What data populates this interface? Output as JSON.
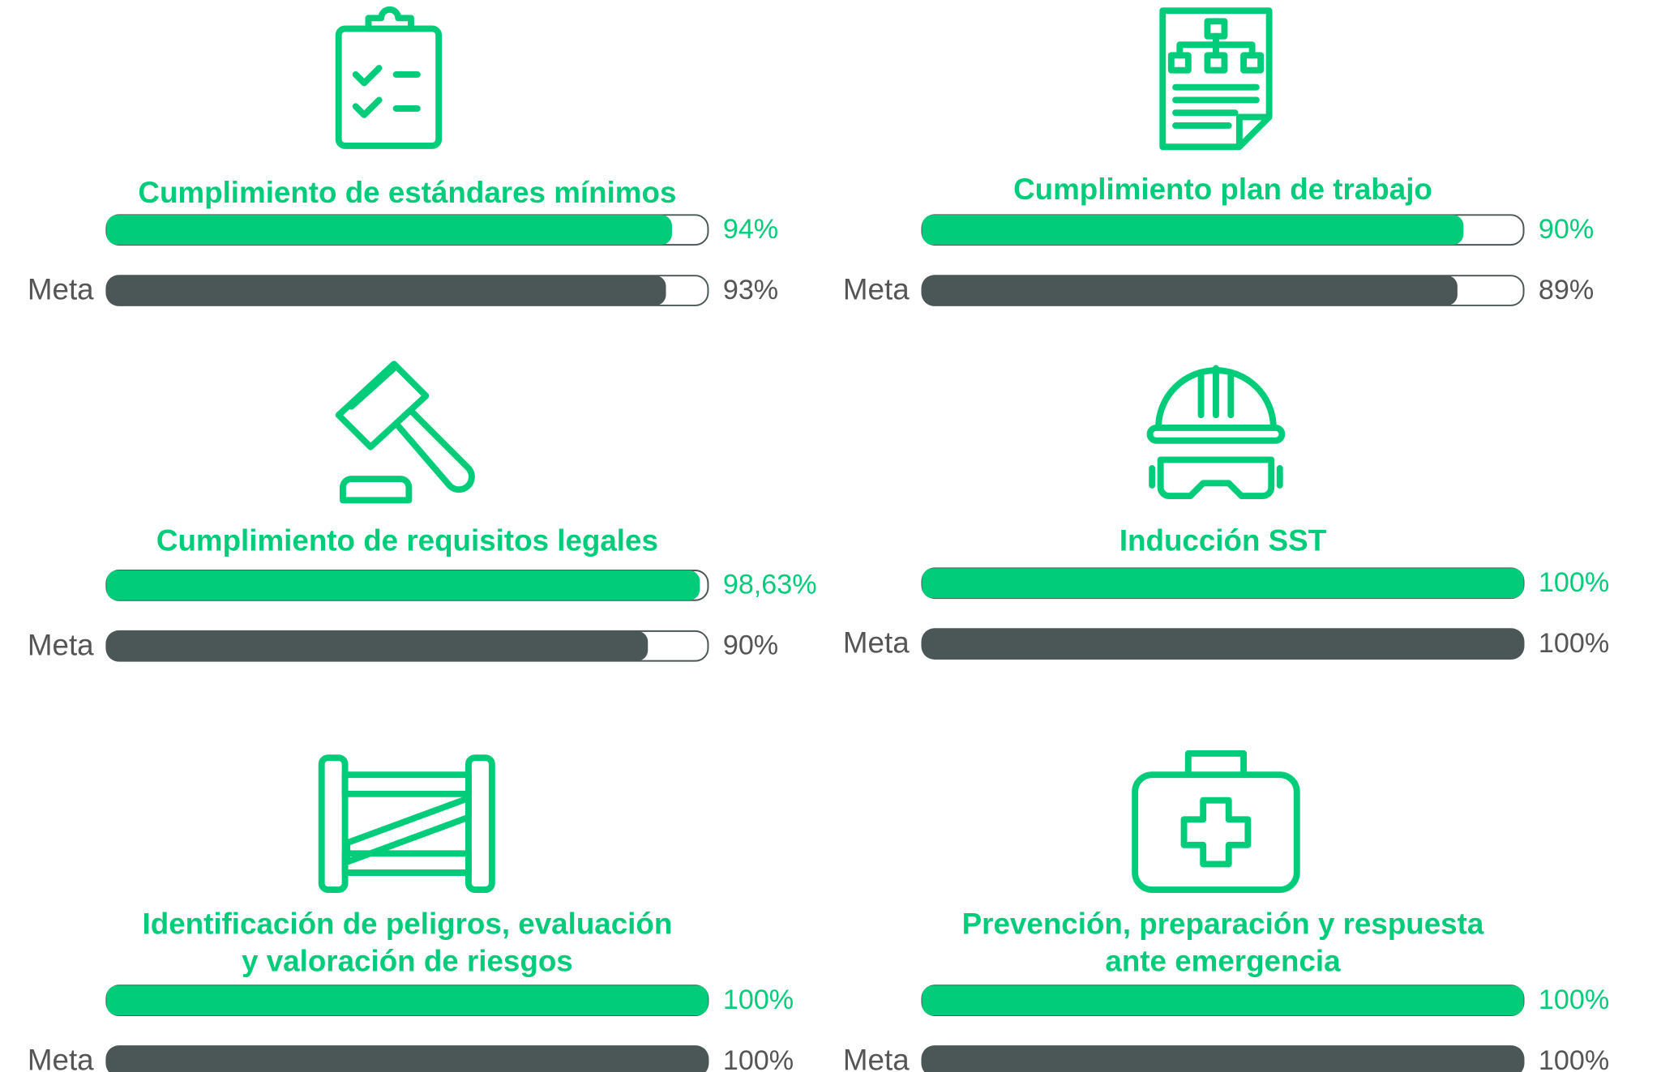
{
  "chart_data": [
    {
      "type": "progress",
      "title": "Cumplimiento de estándares mínimos",
      "categories": [
        null,
        "Meta"
      ],
      "values": [
        94,
        93
      ],
      "value_labels": [
        "94%",
        "93%"
      ],
      "colors": [
        "#00cc7a",
        "#4b5757"
      ],
      "xlim": [
        0,
        100
      ]
    },
    {
      "type": "progress",
      "title": "Cumplimiento plan de trabajo",
      "categories": [
        null,
        "Meta"
      ],
      "values": [
        90,
        89
      ],
      "value_labels": [
        "90%",
        "89%"
      ],
      "colors": [
        "#00cc7a",
        "#4b5757"
      ],
      "xlim": [
        0,
        100
      ]
    },
    {
      "type": "progress",
      "title": "Cumplimiento de requisitos legales",
      "categories": [
        null,
        "Meta"
      ],
      "values": [
        98.63,
        90
      ],
      "value_labels": [
        "98,63%",
        "90%"
      ],
      "colors": [
        "#00cc7a",
        "#4b5757"
      ],
      "xlim": [
        0,
        100
      ]
    },
    {
      "type": "progress",
      "title": "Inducción SST",
      "categories": [
        null,
        "Meta"
      ],
      "values": [
        100,
        100
      ],
      "value_labels": [
        "100%",
        "100%"
      ],
      "colors": [
        "#00cc7a",
        "#4b5757"
      ],
      "xlim": [
        0,
        100
      ]
    },
    {
      "type": "progress",
      "title": [
        "Identificación de peligros, evaluación",
        "y valoración de riesgos"
      ],
      "categories": [
        null,
        "Meta"
      ],
      "values": [
        100,
        100
      ],
      "value_labels": [
        "100%",
        "100%"
      ],
      "colors": [
        "#00cc7a",
        "#4b5757"
      ],
      "xlim": [
        0,
        100
      ]
    },
    {
      "type": "progress",
      "title": [
        "Prevención, preparación y respuesta",
        "ante emergencia"
      ],
      "categories": [
        null,
        "Meta"
      ],
      "values": [
        100,
        100
      ],
      "value_labels": [
        "100%",
        "100%"
      ],
      "colors": [
        "#00cc7a",
        "#4b5757"
      ],
      "xlim": [
        0,
        100
      ]
    }
  ]
}
